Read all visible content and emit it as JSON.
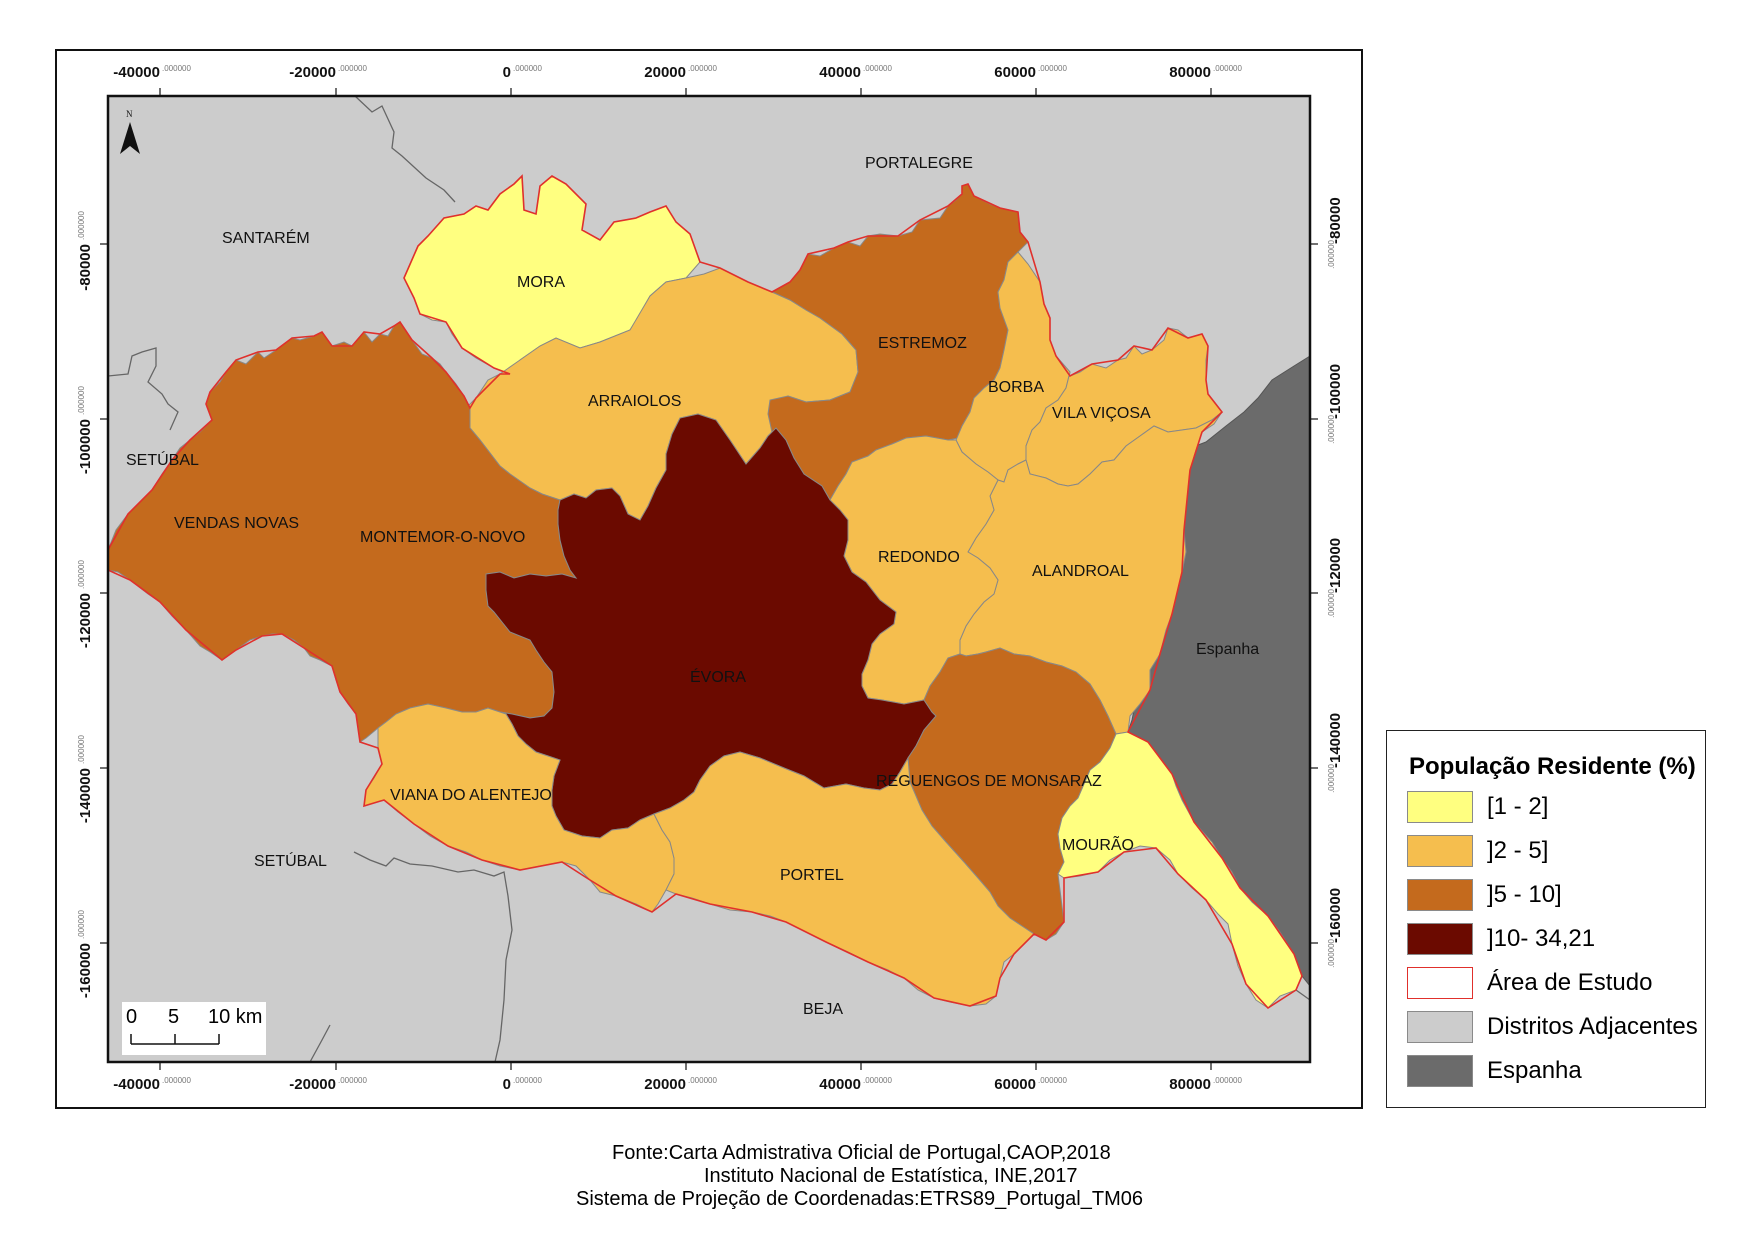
{
  "map": {
    "grid_x_ticks": [
      "-40000",
      "-20000",
      "0",
      "20000",
      "40000",
      "60000",
      "80000"
    ],
    "grid_y_ticks": [
      "-80000",
      "-100000",
      "-120000",
      "-140000",
      "-160000"
    ],
    "tick_decimal_suffix": ".000000",
    "north_label": "N",
    "district_labels": {
      "portalegre": "PORTALEGRE",
      "santarem": "SANTARÉM",
      "setubal_north": "SETÚBAL",
      "setubal_south": "SETÚBAL",
      "beja": "BEJA",
      "espanha": "Espanha"
    },
    "municipalities": [
      {
        "name": "MORA",
        "class": "1-2"
      },
      {
        "name": "ARRAIOLOS",
        "class": "2-5"
      },
      {
        "name": "ESTREMOZ",
        "class": "5-10"
      },
      {
        "name": "BORBA",
        "class": "2-5"
      },
      {
        "name": "VILA VIÇOSA",
        "class": "2-5"
      },
      {
        "name": "VENDAS NOVAS",
        "class": "5-10"
      },
      {
        "name": "MONTEMOR-O-NOVO",
        "class": "5-10"
      },
      {
        "name": "REDONDO",
        "class": "2-5"
      },
      {
        "name": "ALANDROAL",
        "class": "2-5"
      },
      {
        "name": "ÉVORA",
        "class": "10-34.21"
      },
      {
        "name": "REGUENGOS DE MONSARAZ",
        "class": "5-10"
      },
      {
        "name": "VIANA DO ALENTEJO",
        "class": "2-5"
      },
      {
        "name": "MOURÃO",
        "class": "1-2"
      },
      {
        "name": "PORTEL",
        "class": "2-5"
      }
    ],
    "scale_bar": {
      "labels": [
        "0",
        "5",
        "10 km"
      ]
    }
  },
  "legend": {
    "title": "População Residente (%)",
    "items": [
      {
        "label": "[1 - 2]",
        "color": "#FFFF80"
      },
      {
        "label": "]2 - 5]",
        "color": "#F5BE4E"
      },
      {
        "label": "]5 - 10]",
        "color": "#C46A1D"
      },
      {
        "label": "]10- 34,21",
        "color": "#6B0A00"
      },
      {
        "label": "Área de Estudo",
        "color": "#FFFFFF",
        "border": "#E0302C"
      },
      {
        "label": "Distritos Adjacentes",
        "color": "#CCCCCC"
      },
      {
        "label": "Espanha",
        "color": "#6B6B6B"
      }
    ]
  },
  "colors": {
    "class_1_2": "#FFFF80",
    "class_2_5": "#F5BE4E",
    "class_5_10": "#C46A1D",
    "class_10_34": "#6B0A00",
    "districts": "#CCCCCC",
    "spain": "#6B6B6B",
    "study_area_border": "#E0302C"
  },
  "source": {
    "line1": "Fonte:Carta Admistrativa Oficial de Portugal,CAOP,2018",
    "line2": "Instituto Nacional de Estatística, INE,2017",
    "line3": "Sistema de Projeção de Coordenadas:ETRS89_Portugal_TM06"
  }
}
